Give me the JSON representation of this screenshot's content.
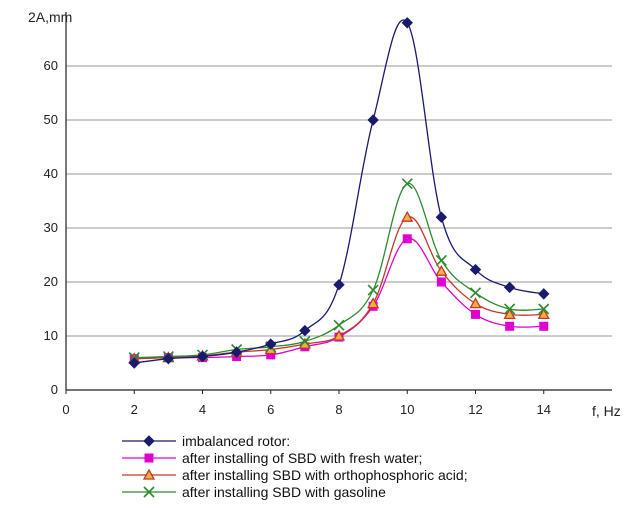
{
  "chart_data": {
    "type": "line",
    "title": "",
    "xlabel": "f, Hz",
    "ylabel": "2A,mm",
    "xlim": [
      0,
      16
    ],
    "ylim": [
      0,
      70
    ],
    "xticks": [
      0,
      2,
      4,
      6,
      8,
      10,
      12,
      14
    ],
    "yticks": [
      0,
      10,
      20,
      30,
      40,
      50,
      60
    ],
    "grid": true,
    "legend_position": "bottom",
    "series": [
      {
        "name": "imbalanced rotor:",
        "color": "#1a1a6e",
        "marker": "diamond",
        "x": [
          2,
          3,
          4,
          5,
          6,
          7,
          8,
          9,
          10,
          11,
          12,
          13,
          14
        ],
        "y": [
          5,
          5.8,
          6.2,
          7,
          8.5,
          11,
          19.5,
          50,
          68,
          32,
          22.3,
          19,
          17.8
        ]
      },
      {
        "name": "after installing of SBD with fresh water;",
        "color": "#e000d0",
        "marker": "square",
        "x": [
          2,
          3,
          4,
          5,
          6,
          7,
          8,
          9,
          10,
          11,
          12,
          13,
          14
        ],
        "y": [
          5.8,
          6,
          6,
          6.2,
          6.5,
          8,
          9.8,
          15.5,
          28,
          20,
          14,
          11.8,
          11.8
        ]
      },
      {
        "name": "after installing SBD with orthophosphoric acid;",
        "color": "#c0392b",
        "marker": "triangle",
        "x": [
          2,
          3,
          4,
          5,
          6,
          7,
          8,
          9,
          10,
          11,
          12,
          13,
          14
        ],
        "y": [
          5.8,
          6,
          6.3,
          7,
          7.5,
          8.5,
          10,
          16,
          32,
          22,
          16,
          14,
          14
        ]
      },
      {
        "name": "after installing SBD with gasoline",
        "color": "#2e8b2e",
        "marker": "x",
        "x": [
          2,
          3,
          4,
          5,
          6,
          7,
          8,
          9,
          10,
          11,
          12,
          13,
          14
        ],
        "y": [
          6,
          6.2,
          6.5,
          7.5,
          8,
          9,
          12,
          18.5,
          38.2,
          24,
          18,
          15,
          15
        ]
      }
    ]
  }
}
